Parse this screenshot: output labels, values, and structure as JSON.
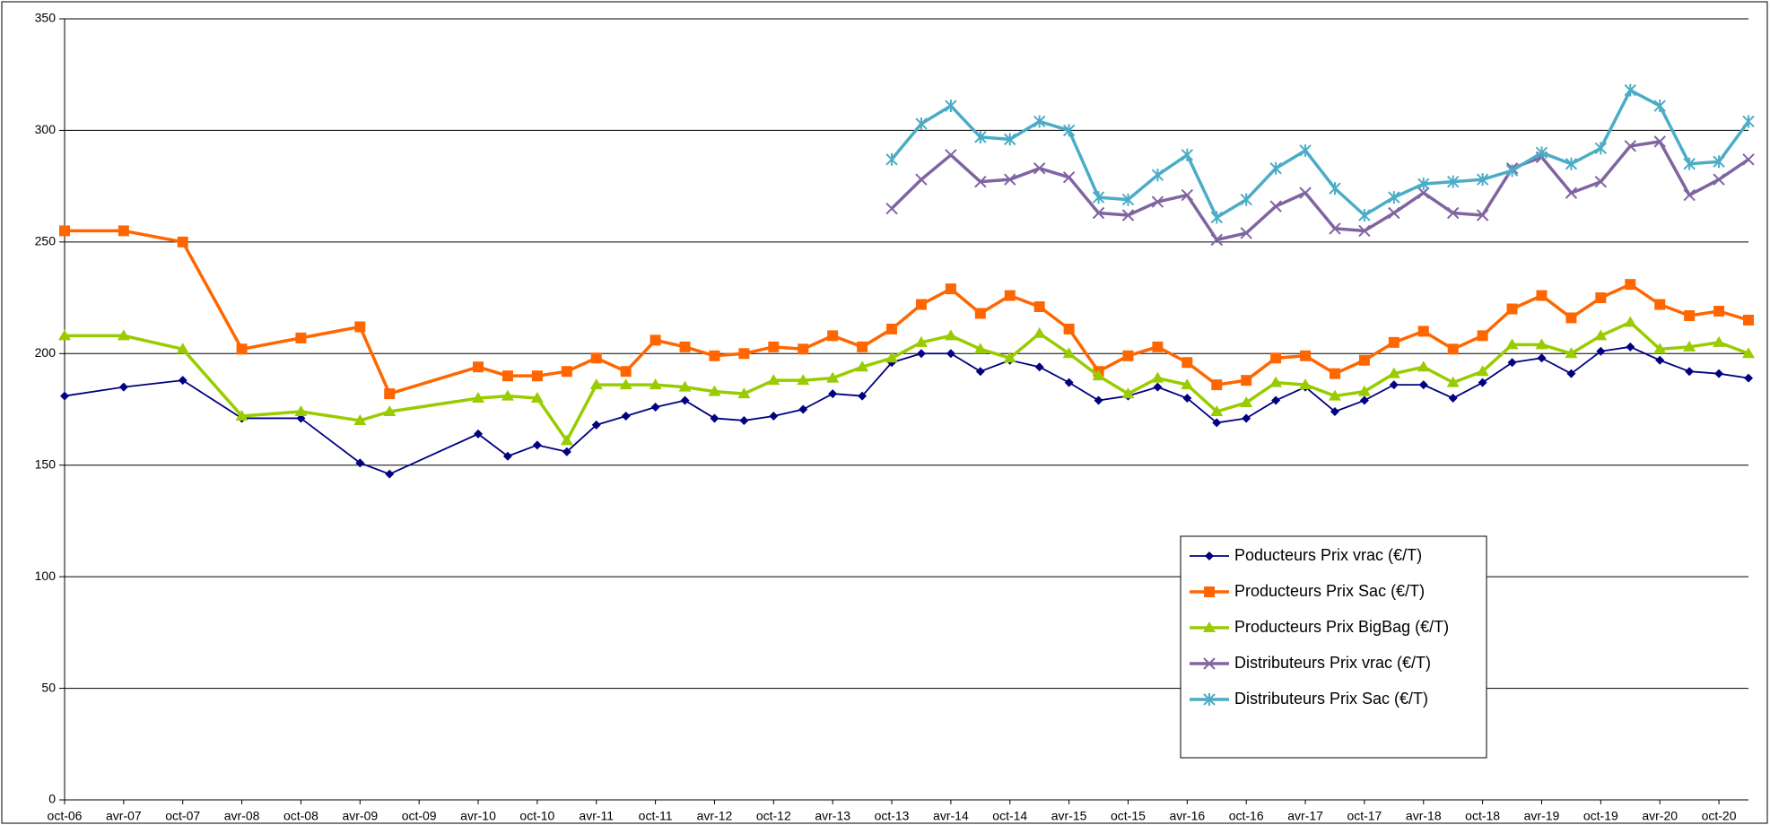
{
  "chart_data": {
    "type": "line",
    "categories": [
      "oct-06",
      null,
      "avr-07",
      null,
      "oct-07",
      null,
      "avr-08",
      null,
      "oct-08",
      null,
      "avr-09",
      null,
      "oct-09",
      null,
      "avr-10",
      null,
      "oct-10",
      null,
      "avr-11",
      null,
      "oct-11",
      null,
      "avr-12",
      null,
      "oct-12",
      null,
      "avr-13",
      null,
      "oct-13",
      null,
      "avr-14",
      null,
      "oct-14",
      null,
      "avr-15",
      null,
      "oct-15",
      null,
      "avr-16",
      null,
      "oct-16",
      null,
      "avr-17",
      null,
      "oct-17",
      null,
      "avr-18",
      null,
      "oct-18",
      null,
      "avr-19",
      null,
      "oct-19",
      null,
      "avr-20",
      null,
      "oct-20",
      null
    ],
    "series": [
      {
        "name": "Poducteurs Prix vrac (€/T)",
        "color": "#000080",
        "marker": "diamond",
        "values": [
          181,
          null,
          185,
          null,
          188,
          null,
          171,
          null,
          171,
          null,
          151,
          146,
          null,
          null,
          164,
          154,
          159,
          156,
          168,
          172,
          176,
          179,
          171,
          170,
          172,
          175,
          182,
          181,
          196,
          200,
          200,
          192,
          197,
          194,
          187,
          179,
          181,
          185,
          180,
          169,
          171,
          179,
          185,
          174,
          179,
          186,
          186,
          180,
          187,
          196,
          198,
          191,
          201,
          203,
          197,
          192,
          191,
          189
        ]
      },
      {
        "name": "Producteurs Prix Sac (€/T)",
        "color": "#ff6600",
        "marker": "square",
        "values": [
          255,
          null,
          255,
          null,
          250,
          null,
          202,
          null,
          207,
          null,
          212,
          182,
          null,
          null,
          194,
          190,
          190,
          192,
          198,
          192,
          206,
          203,
          199,
          200,
          203,
          202,
          208,
          203,
          211,
          222,
          229,
          218,
          226,
          221,
          211,
          192,
          199,
          203,
          196,
          186,
          188,
          198,
          199,
          191,
          197,
          205,
          210,
          202,
          208,
          220,
          226,
          216,
          225,
          231,
          222,
          217,
          219,
          215
        ]
      },
      {
        "name": "Producteurs Prix BigBag (€/T)",
        "color": "#99cc00",
        "marker": "triangle",
        "values": [
          208,
          null,
          208,
          null,
          202,
          null,
          172,
          null,
          174,
          null,
          170,
          174,
          null,
          null,
          180,
          181,
          180,
          161,
          186,
          186,
          186,
          185,
          183,
          182,
          188,
          188,
          189,
          194,
          198,
          205,
          208,
          202,
          198,
          209,
          200,
          190,
          182,
          189,
          186,
          174,
          178,
          187,
          186,
          181,
          183,
          191,
          194,
          187,
          192,
          204,
          204,
          200,
          208,
          214,
          202,
          203,
          205,
          200
        ]
      },
      {
        "name": "Distributeurs Prix vrac (€/T)",
        "color": "#8064a2",
        "marker": "x",
        "values": [
          null,
          null,
          null,
          null,
          null,
          null,
          null,
          null,
          null,
          null,
          null,
          null,
          null,
          null,
          null,
          null,
          null,
          null,
          null,
          null,
          null,
          null,
          null,
          null,
          null,
          null,
          null,
          null,
          265,
          278,
          289,
          277,
          278,
          283,
          279,
          263,
          262,
          268,
          271,
          251,
          254,
          266,
          272,
          256,
          255,
          263,
          272,
          263,
          262,
          283,
          288,
          272,
          277,
          293,
          295,
          271,
          278,
          287
        ]
      },
      {
        "name": "Distributeurs Prix Sac (€/T)",
        "color": "#4bacc6",
        "marker": "star",
        "values": [
          null,
          null,
          null,
          null,
          null,
          null,
          null,
          null,
          null,
          null,
          null,
          null,
          null,
          null,
          null,
          null,
          null,
          null,
          null,
          null,
          null,
          null,
          null,
          null,
          null,
          null,
          null,
          null,
          287,
          303,
          311,
          297,
          296,
          304,
          300,
          270,
          269,
          280,
          289,
          261,
          269,
          283,
          291,
          274,
          262,
          270,
          276,
          277,
          278,
          282,
          290,
          285,
          292,
          318,
          311,
          285,
          286,
          304
        ]
      }
    ],
    "ylim": [
      0,
      350
    ],
    "yticks": [
      0,
      50,
      100,
      150,
      200,
      250,
      300,
      350
    ],
    "grid": true,
    "legend": "lower-right"
  }
}
